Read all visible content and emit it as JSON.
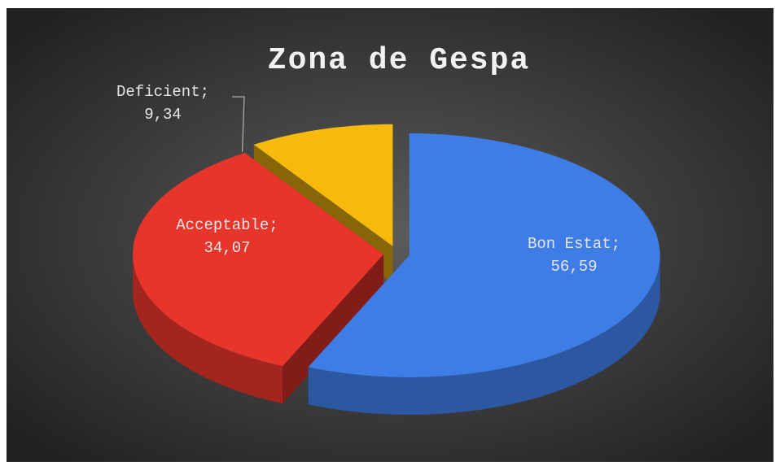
{
  "chart_data": {
    "type": "pie",
    "title": "Zona de Gespa",
    "categories": [
      "Bon Estat;",
      "Acceptable;",
      "Deficient;"
    ],
    "values": [
      56.59,
      34.07,
      9.34
    ],
    "value_labels": [
      "56,59",
      "34,07",
      "9,34"
    ],
    "colors": [
      "#3f7de6",
      "#e8352b",
      "#f6b90c"
    ],
    "three_d": true,
    "exploded": true
  }
}
